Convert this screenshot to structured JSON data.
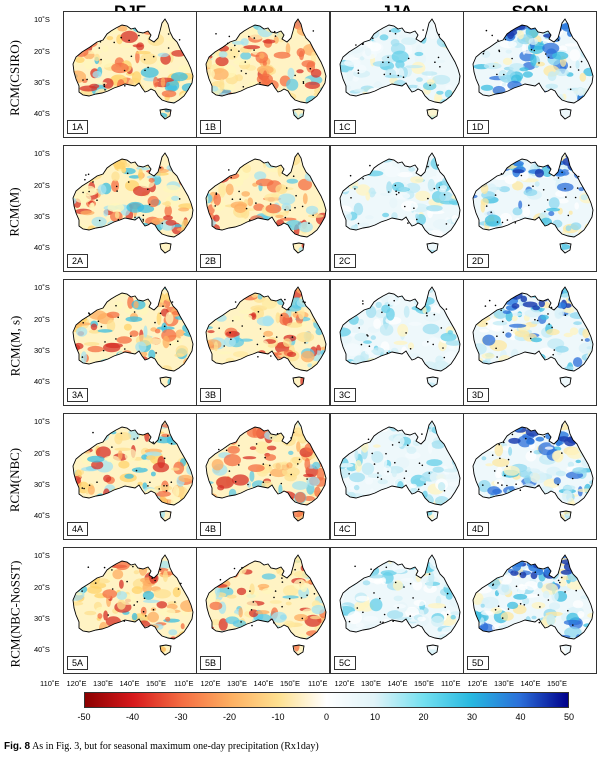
{
  "figure": {
    "columns": [
      "DJF",
      "MAM",
      "JJA",
      "SON"
    ],
    "rows": [
      "RCM(CSIRO)",
      "RCM(M)",
      "RCM(M, s)",
      "RCM(NBC)",
      "RCM(NBC-NoSST)"
    ],
    "panel_labels": [
      [
        "1A",
        "1B",
        "1C",
        "1D"
      ],
      [
        "2A",
        "2B",
        "2C",
        "2D"
      ],
      [
        "3A",
        "3B",
        "3C",
        "3D"
      ],
      [
        "4A",
        "4B",
        "4C",
        "4D"
      ],
      [
        "5A",
        "5B",
        "5C",
        "5D"
      ]
    ],
    "lat_ticks": [
      "10˚S",
      "20˚S",
      "30˚S",
      "40˚S"
    ],
    "lon_ticks": [
      "110˚E",
      "120˚E",
      "130˚E",
      "140˚E",
      "150˚E"
    ],
    "colorbar": {
      "ticks": [
        "-50",
        "-40",
        "-30",
        "-20",
        "-10",
        "0",
        "10",
        "20",
        "30",
        "40",
        "50"
      ],
      "range": [
        -50,
        50
      ],
      "colors": [
        "#8b0000",
        "#d7191c",
        "#f46d43",
        "#fdae61",
        "#fee090",
        "#ffffff",
        "#e0f3f8",
        "#74e0f0",
        "#27b8e0",
        "#2b6fd9",
        "#00008b"
      ]
    },
    "caption_bold": "Fig. 8",
    "caption_text": " As in Fig. 3, but for seasonal maximum one-day precipitation (Rx1day)"
  }
}
